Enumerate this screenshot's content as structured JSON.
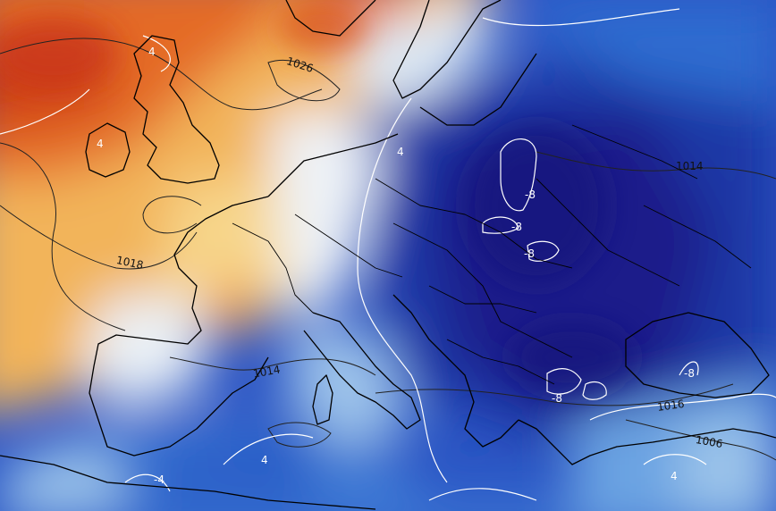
{
  "map": {
    "isobar_labels": [
      "1026",
      "1018",
      "1014",
      "1014",
      "1016",
      "1006"
    ],
    "isotherm_labels": [
      "4",
      "4",
      "4",
      "-8",
      "-8",
      "-8",
      "-8",
      "-8",
      "4",
      "4",
      "-4"
    ]
  },
  "colors": {
    "warm_red": "#d9541e",
    "warm_orange": "#f09a3c",
    "warm_yellow": "#f7d27c",
    "neutral_pale": "#eef2f6",
    "cool_light": "#9cc4ea",
    "cool_mid": "#3e7fd6",
    "cold_blue": "#1f3fae",
    "cold_deep": "#1a1f8a",
    "coastline": "#000000",
    "isobar": "#222222",
    "isotherm": "#ffffff"
  }
}
